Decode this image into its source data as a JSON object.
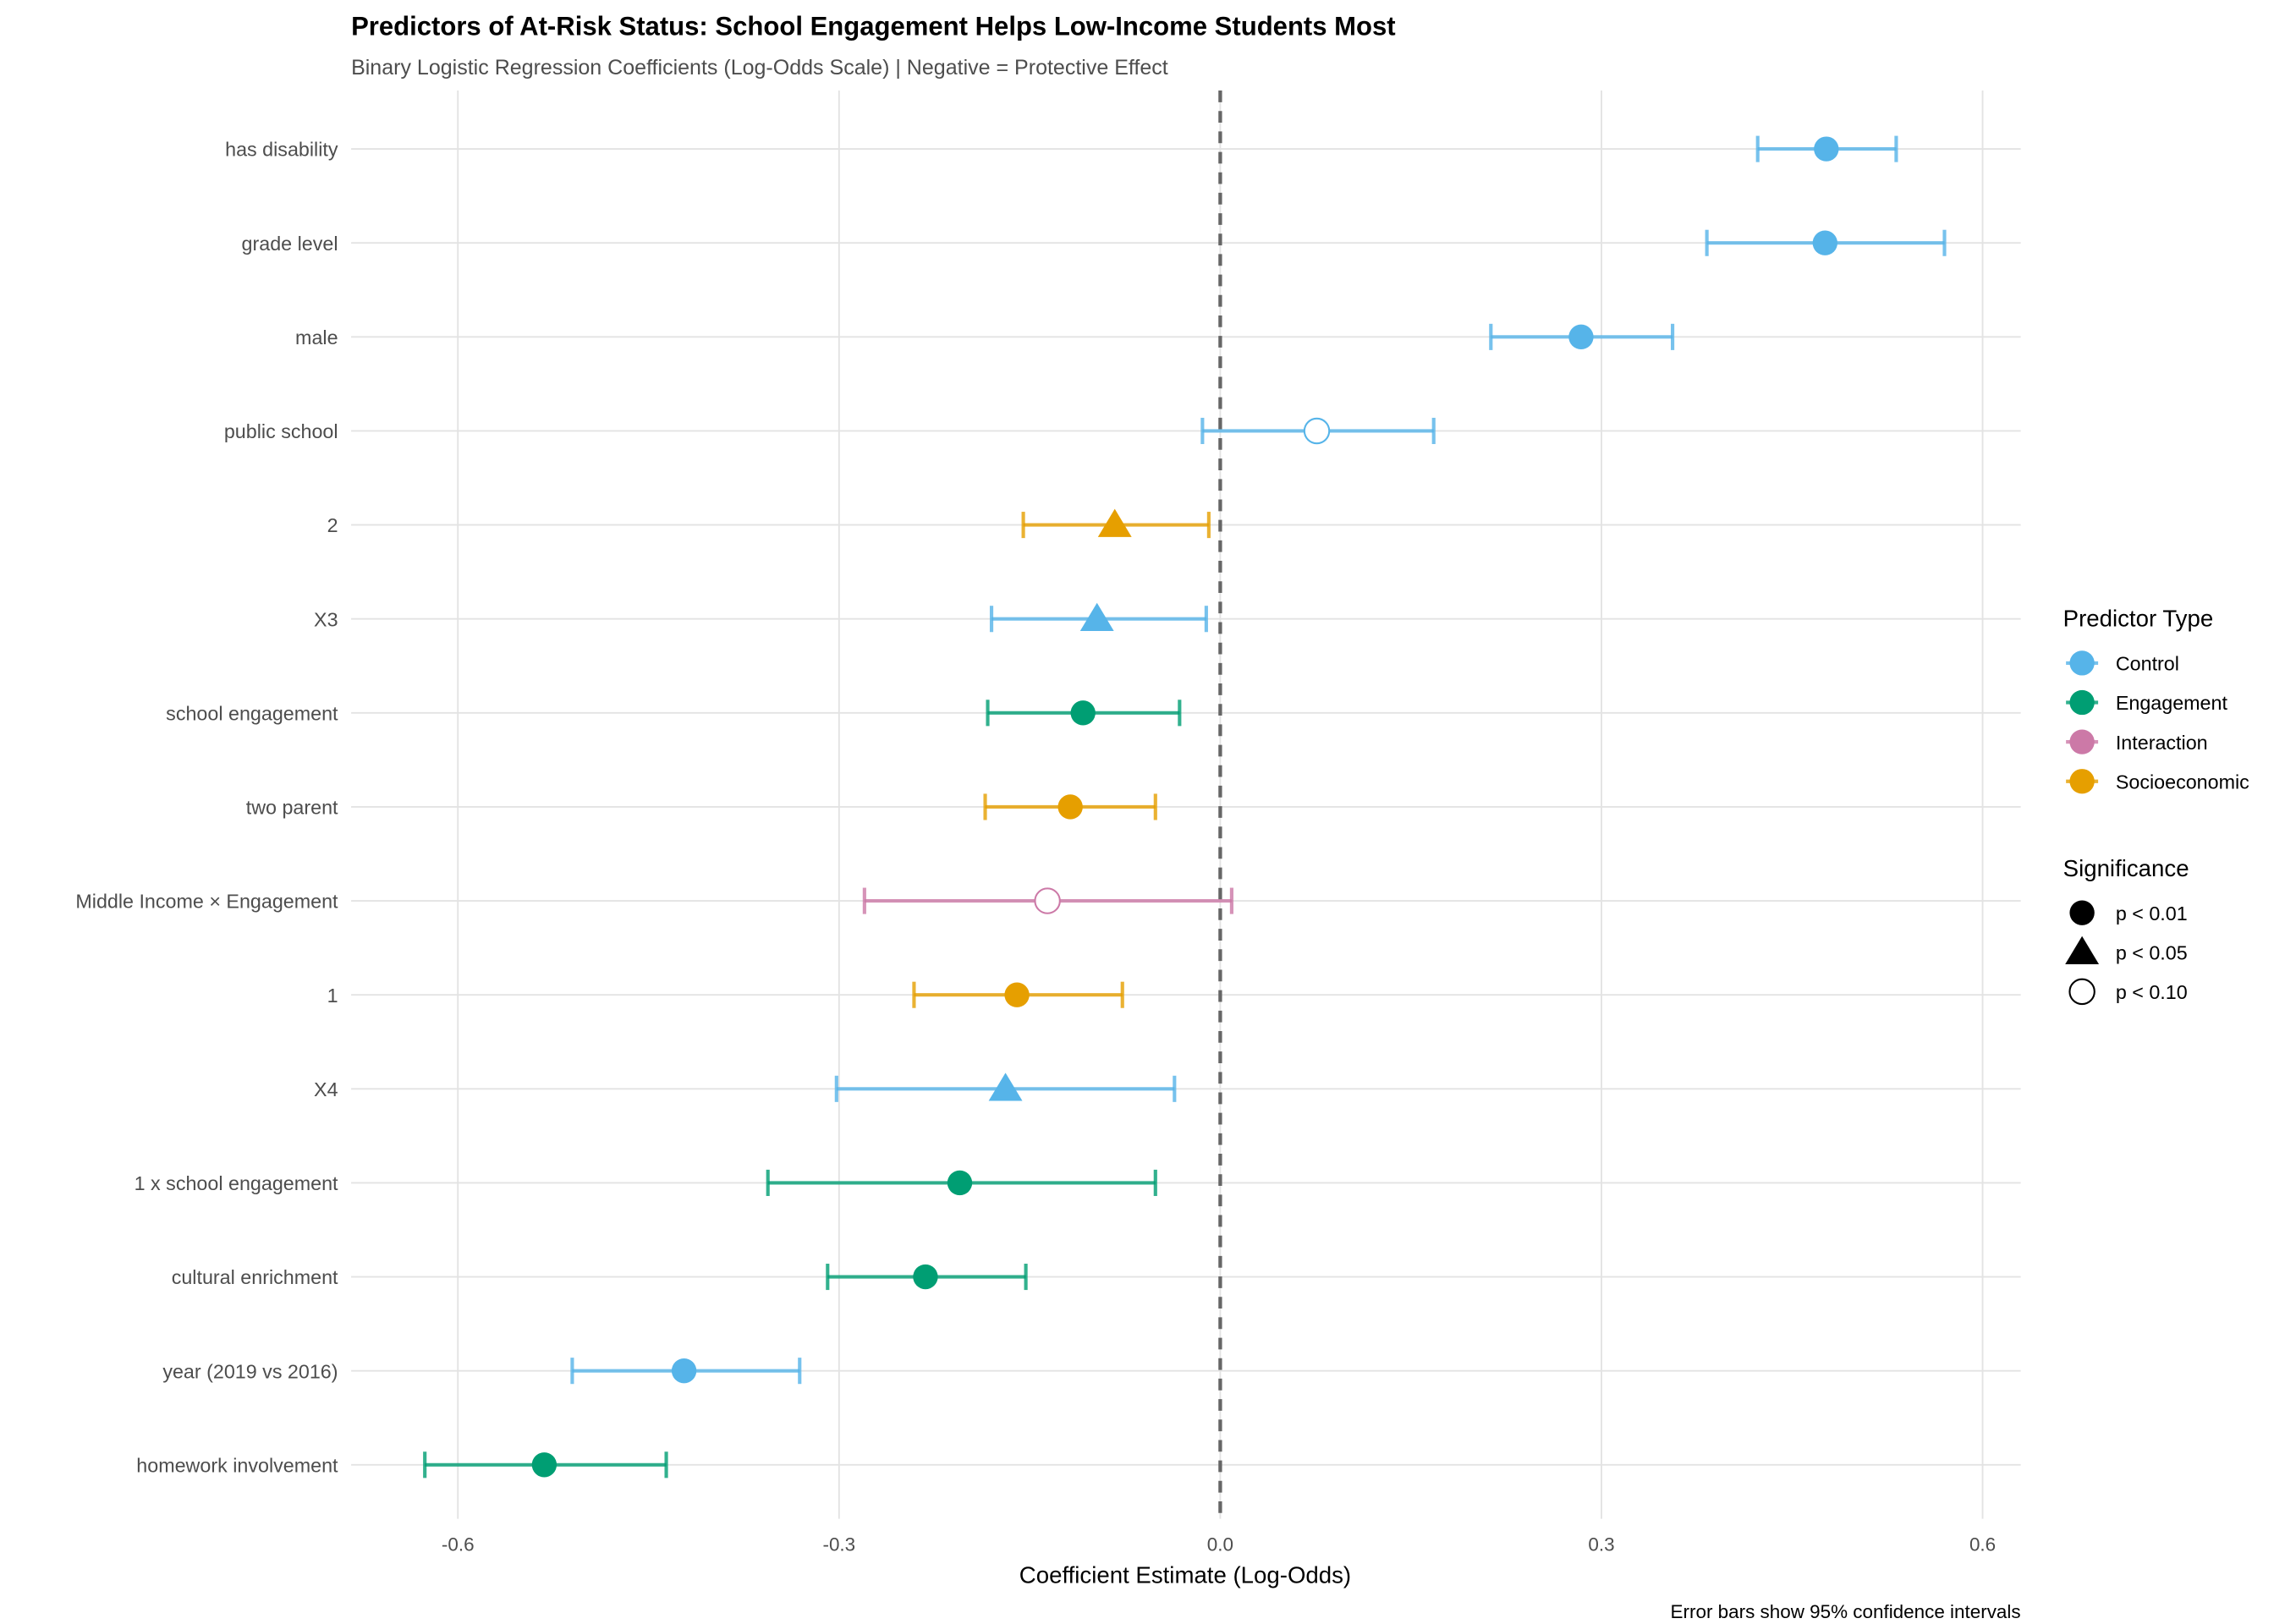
{
  "chart_data": {
    "type": "scatter",
    "subtype": "coefficient plot with horizontal error bars",
    "title": "Predictors of At-Risk Status: School Engagement Helps Low-Income Students Most",
    "subtitle": "Binary Logistic Regression Coefficients (Log-Odds Scale) | Negative = Protective Effect",
    "xlabel": "Coefficient Estimate (Log-Odds)",
    "ylabel": "",
    "caption": "Error bars show 95% confidence intervals",
    "xlim": [
      -0.684,
      0.63
    ],
    "xticks": [
      -0.6,
      -0.3,
      0.0,
      0.3,
      0.6
    ],
    "xtick_labels": [
      "-0.6",
      "-0.3",
      "0.0",
      "0.3",
      "0.6"
    ],
    "reference_line": {
      "x": 0,
      "style": "dashed",
      "color": "#666666"
    },
    "grid": true,
    "legend_position": "right",
    "legend": {
      "color_title": "Predictor Type",
      "colors": [
        {
          "label": "Control",
          "color": "#56B4E9"
        },
        {
          "label": "Engagement",
          "color": "#009E73"
        },
        {
          "label": "Interaction",
          "color": "#CC79A7"
        },
        {
          "label": "Socioeconomic",
          "color": "#E69F00"
        }
      ],
      "shape_title": "Significance",
      "shapes": [
        {
          "label": "p < 0.01",
          "shape": "circle"
        },
        {
          "label": "p < 0.05",
          "shape": "triangle"
        },
        {
          "label": "p < 0.10",
          "shape": "open-circle"
        }
      ]
    },
    "points": [
      {
        "term": "has disability",
        "estimate": 0.477,
        "ci_low": 0.423,
        "ci_high": 0.532,
        "type": "Control",
        "sig": "p < 0.01"
      },
      {
        "term": "grade level",
        "estimate": 0.476,
        "ci_low": 0.383,
        "ci_high": 0.57,
        "type": "Control",
        "sig": "p < 0.01"
      },
      {
        "term": "male",
        "estimate": 0.284,
        "ci_low": 0.213,
        "ci_high": 0.356,
        "type": "Control",
        "sig": "p < 0.01"
      },
      {
        "term": "public school",
        "estimate": 0.076,
        "ci_low": -0.014,
        "ci_high": 0.168,
        "type": "Control",
        "sig": "p < 0.10"
      },
      {
        "term": "2",
        "estimate": -0.083,
        "ci_low": -0.155,
        "ci_high": -0.009,
        "type": "Socioeconomic",
        "sig": "p < 0.05"
      },
      {
        "term": "X3",
        "estimate": -0.097,
        "ci_low": -0.18,
        "ci_high": -0.011,
        "type": "Control",
        "sig": "p < 0.05"
      },
      {
        "term": "school engagement",
        "estimate": -0.108,
        "ci_low": -0.183,
        "ci_high": -0.032,
        "type": "Engagement",
        "sig": "p < 0.01"
      },
      {
        "term": "two parent",
        "estimate": -0.118,
        "ci_low": -0.185,
        "ci_high": -0.051,
        "type": "Socioeconomic",
        "sig": "p < 0.01"
      },
      {
        "term": "Middle Income × Engagement",
        "estimate": -0.136,
        "ci_low": -0.28,
        "ci_high": 0.009,
        "type": "Interaction",
        "sig": "p < 0.10"
      },
      {
        "term": "1",
        "estimate": -0.16,
        "ci_low": -0.241,
        "ci_high": -0.077,
        "type": "Socioeconomic",
        "sig": "p < 0.01"
      },
      {
        "term": "X4",
        "estimate": -0.169,
        "ci_low": -0.302,
        "ci_high": -0.036,
        "type": "Control",
        "sig": "p < 0.05"
      },
      {
        "term": "1 x school engagement",
        "estimate": -0.205,
        "ci_low": -0.356,
        "ci_high": -0.051,
        "type": "Engagement",
        "sig": "p < 0.01"
      },
      {
        "term": "cultural enrichment",
        "estimate": -0.232,
        "ci_low": -0.309,
        "ci_high": -0.153,
        "type": "Engagement",
        "sig": "p < 0.01"
      },
      {
        "term": "year (2019 vs 2016)",
        "estimate": -0.422,
        "ci_low": -0.51,
        "ci_high": -0.331,
        "type": "Control",
        "sig": "p < 0.01"
      },
      {
        "term": "homework involvement",
        "estimate": -0.532,
        "ci_low": -0.626,
        "ci_high": -0.436,
        "type": "Engagement",
        "sig": "p < 0.01"
      }
    ]
  }
}
